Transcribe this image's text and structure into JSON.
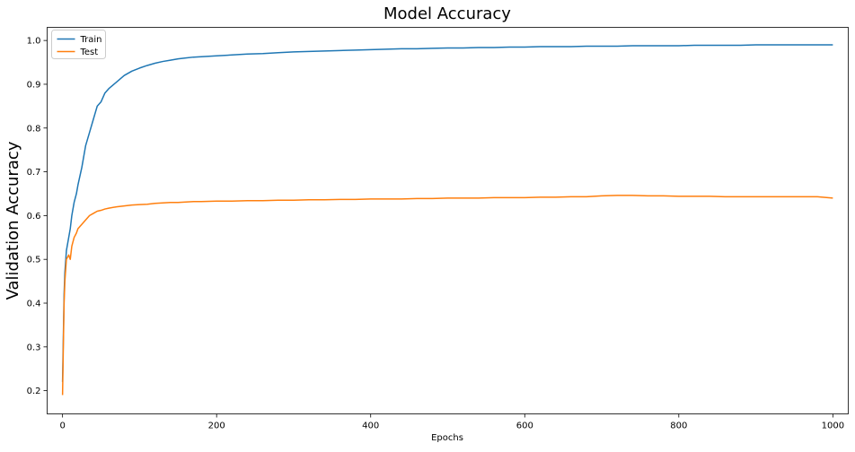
{
  "chart_data": {
    "type": "line",
    "title": "Model Accuracy",
    "xlabel": "Epochs",
    "ylabel": "Validation Accuracy",
    "xlim": [
      -20,
      1020
    ],
    "ylim": [
      0.147,
      1.03
    ],
    "xticks": [
      0,
      200,
      400,
      600,
      800,
      1000
    ],
    "yticks": [
      0.2,
      0.3,
      0.4,
      0.5,
      0.6,
      0.7,
      0.8,
      0.9,
      1.0
    ],
    "grid": false,
    "legend_position": "top-left",
    "series": [
      {
        "name": "Train",
        "color": "#1f77b4",
        "x": [
          0,
          1,
          2,
          3,
          5,
          8,
          10,
          12,
          15,
          18,
          20,
          25,
          30,
          35,
          40,
          45,
          50,
          55,
          60,
          70,
          80,
          90,
          100,
          110,
          120,
          130,
          140,
          150,
          160,
          170,
          180,
          200,
          220,
          240,
          260,
          280,
          300,
          320,
          340,
          360,
          380,
          400,
          420,
          440,
          460,
          480,
          500,
          520,
          540,
          560,
          580,
          600,
          620,
          640,
          660,
          680,
          700,
          720,
          740,
          760,
          780,
          800,
          820,
          840,
          860,
          880,
          900,
          920,
          940,
          960,
          980,
          1000
        ],
        "y": [
          0.22,
          0.32,
          0.42,
          0.47,
          0.52,
          0.55,
          0.57,
          0.6,
          0.63,
          0.65,
          0.67,
          0.71,
          0.76,
          0.79,
          0.82,
          0.85,
          0.86,
          0.88,
          0.89,
          0.905,
          0.92,
          0.93,
          0.937,
          0.943,
          0.948,
          0.952,
          0.955,
          0.958,
          0.96,
          0.962,
          0.963,
          0.965,
          0.967,
          0.969,
          0.97,
          0.972,
          0.974,
          0.975,
          0.976,
          0.977,
          0.978,
          0.979,
          0.98,
          0.981,
          0.981,
          0.982,
          0.983,
          0.983,
          0.984,
          0.984,
          0.985,
          0.985,
          0.986,
          0.986,
          0.986,
          0.987,
          0.987,
          0.987,
          0.988,
          0.988,
          0.988,
          0.988,
          0.989,
          0.989,
          0.989,
          0.989,
          0.99,
          0.99,
          0.99,
          0.99,
          0.99,
          0.99
        ]
      },
      {
        "name": "Test",
        "color": "#ff7f0e",
        "x": [
          0,
          1,
          2,
          3,
          5,
          8,
          10,
          12,
          15,
          18,
          20,
          25,
          30,
          35,
          40,
          45,
          50,
          55,
          60,
          70,
          80,
          90,
          100,
          110,
          120,
          130,
          140,
          150,
          160,
          170,
          180,
          200,
          220,
          240,
          260,
          280,
          300,
          320,
          340,
          360,
          380,
          400,
          420,
          440,
          460,
          480,
          500,
          520,
          540,
          560,
          580,
          600,
          620,
          640,
          660,
          680,
          700,
          720,
          740,
          760,
          780,
          800,
          820,
          840,
          860,
          880,
          900,
          920,
          940,
          960,
          980,
          1000
        ],
        "y": [
          0.19,
          0.3,
          0.4,
          0.45,
          0.5,
          0.51,
          0.5,
          0.53,
          0.55,
          0.56,
          0.57,
          0.58,
          0.59,
          0.6,
          0.605,
          0.61,
          0.612,
          0.615,
          0.617,
          0.62,
          0.622,
          0.624,
          0.625,
          0.626,
          0.628,
          0.629,
          0.63,
          0.63,
          0.631,
          0.632,
          0.632,
          0.633,
          0.633,
          0.634,
          0.634,
          0.635,
          0.635,
          0.636,
          0.636,
          0.637,
          0.637,
          0.638,
          0.638,
          0.638,
          0.639,
          0.639,
          0.64,
          0.64,
          0.64,
          0.641,
          0.641,
          0.641,
          0.642,
          0.642,
          0.643,
          0.643,
          0.645,
          0.646,
          0.646,
          0.645,
          0.645,
          0.644,
          0.644,
          0.644,
          0.643,
          0.643,
          0.643,
          0.643,
          0.643,
          0.643,
          0.643,
          0.64
        ]
      }
    ]
  }
}
